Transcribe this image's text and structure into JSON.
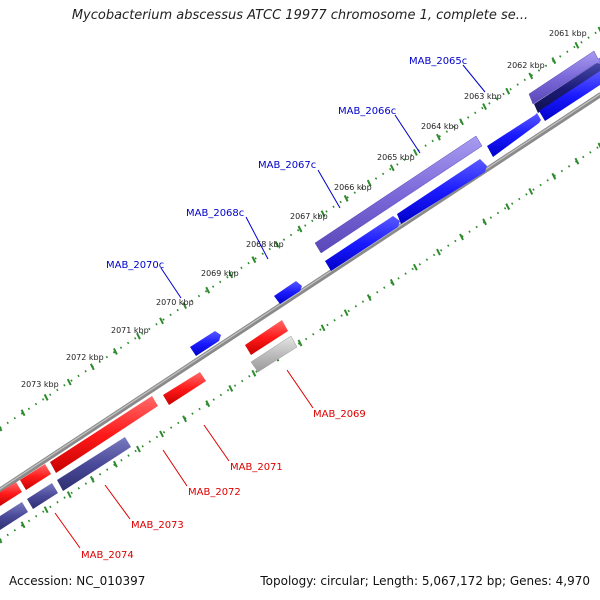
{
  "title": "Mycobacterium abscessus ATCC 19977 chromosome 1, complete se...",
  "footer": {
    "accession": "Accession: NC_010397",
    "summary": "Topology: circular; Length: 5,067,172 bp; Genes: 4,970"
  },
  "colors": {
    "backbone": "#8a8a8a",
    "ruler_dots": "#2e8b2e",
    "forward_gene": "#1a1aff",
    "forward_highlight": "#7b68d9",
    "forward_dark": "#1c1c7a",
    "reverse_gene": "#ff1a1a",
    "reverse_highlight": "#4a4a9a",
    "reverse_grey": "#bdbdbd",
    "forward_label": "#0000cc",
    "reverse_label": "#dd0000"
  },
  "ruler_labels": [
    "2061 kbp",
    "2062 kbp",
    "2063 kbp",
    "2064 kbp",
    "2065 kbp",
    "2066 kbp",
    "2067 kbp",
    "2068 kbp",
    "2069 kbp",
    "2070 kbp",
    "2071 kbp",
    "2072 kbp",
    "2073 kbp"
  ],
  "forward_gene_labels": [
    "MAB_2065c",
    "MAB_2066c",
    "MAB_2067c",
    "MAB_2068c",
    "MAB_2070c"
  ],
  "reverse_gene_labels": [
    "MAB_2069",
    "MAB_2071",
    "MAB_2072",
    "MAB_2073",
    "MAB_2074"
  ]
}
